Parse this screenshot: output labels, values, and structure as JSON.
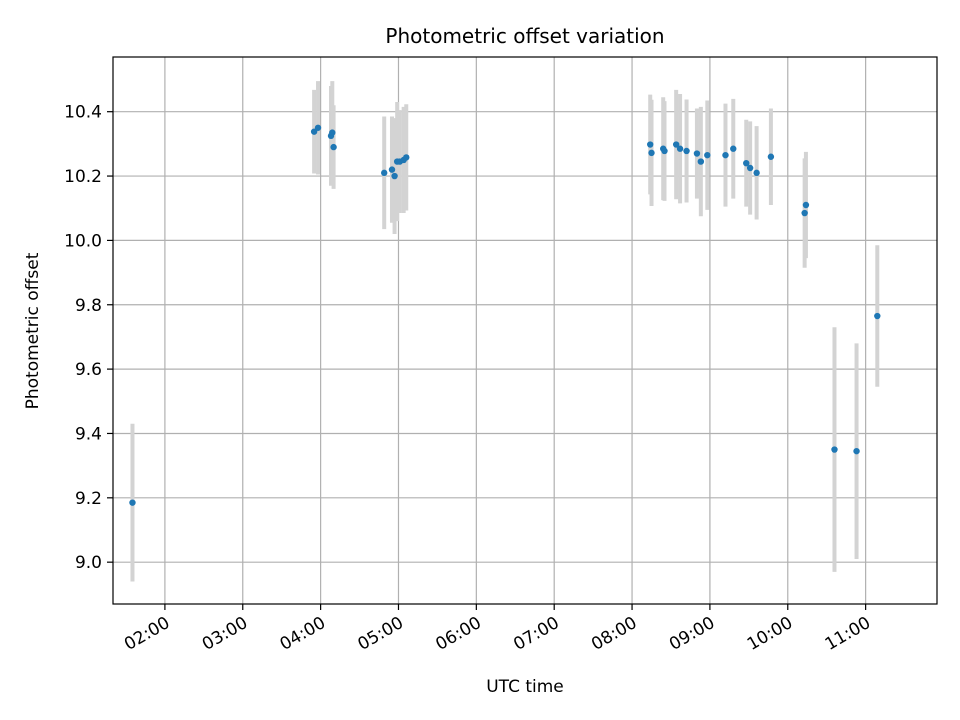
{
  "chart_data": {
    "type": "scatter",
    "title": "Photometric offset variation",
    "xlabel": "UTC time",
    "ylabel": "Photometric offset",
    "x_axis_type": "time",
    "xlim": [
      "01:20",
      "11:55"
    ],
    "ylim": [
      8.87,
      10.57
    ],
    "grid": true,
    "x_ticks": [
      "02:00",
      "03:00",
      "04:00",
      "05:00",
      "06:00",
      "07:00",
      "08:00",
      "09:00",
      "10:00",
      "11:00"
    ],
    "y_ticks": [
      9.0,
      9.2,
      9.4,
      9.6,
      9.8,
      10.0,
      10.2,
      10.4
    ],
    "y_tick_labels": [
      "9.0",
      "9.2",
      "9.4",
      "9.6",
      "9.8",
      "10.0",
      "10.2",
      "10.4"
    ],
    "marker_color": "#1f77b4",
    "errorbar_color": "#d3d3d3",
    "points": [
      {
        "time": "01:35",
        "y": 9.185,
        "yerr": 0.245
      },
      {
        "time": "03:55",
        "y": 10.338,
        "yerr": 0.13
      },
      {
        "time": "03:58",
        "y": 10.35,
        "yerr": 0.145
      },
      {
        "time": "04:08",
        "y": 10.325,
        "yerr": 0.155
      },
      {
        "time": "04:09",
        "y": 10.335,
        "yerr": 0.16
      },
      {
        "time": "04:10",
        "y": 10.29,
        "yerr": 0.13
      },
      {
        "time": "04:49",
        "y": 10.21,
        "yerr": 0.175
      },
      {
        "time": "04:55",
        "y": 10.22,
        "yerr": 0.165
      },
      {
        "time": "04:57",
        "y": 10.2,
        "yerr": 0.18
      },
      {
        "time": "04:59",
        "y": 10.245,
        "yerr": 0.185
      },
      {
        "time": "05:01",
        "y": 10.245,
        "yerr": 0.16
      },
      {
        "time": "05:04",
        "y": 10.25,
        "yerr": 0.165
      },
      {
        "time": "05:06",
        "y": 10.258,
        "yerr": 0.165
      },
      {
        "time": "08:14",
        "y": 10.298,
        "yerr": 0.155
      },
      {
        "time": "08:15",
        "y": 10.272,
        "yerr": 0.165
      },
      {
        "time": "08:24",
        "y": 10.285,
        "yerr": 0.16
      },
      {
        "time": "08:25",
        "y": 10.278,
        "yerr": 0.155
      },
      {
        "time": "08:34",
        "y": 10.298,
        "yerr": 0.17
      },
      {
        "time": "08:37",
        "y": 10.285,
        "yerr": 0.17
      },
      {
        "time": "08:42",
        "y": 10.278,
        "yerr": 0.16
      },
      {
        "time": "08:50",
        "y": 10.27,
        "yerr": 0.14
      },
      {
        "time": "08:53",
        "y": 10.245,
        "yerr": 0.17
      },
      {
        "time": "08:58",
        "y": 10.265,
        "yerr": 0.17
      },
      {
        "time": "09:12",
        "y": 10.265,
        "yerr": 0.16
      },
      {
        "time": "09:18",
        "y": 10.285,
        "yerr": 0.155
      },
      {
        "time": "09:28",
        "y": 10.24,
        "yerr": 0.135
      },
      {
        "time": "09:31",
        "y": 10.225,
        "yerr": 0.145
      },
      {
        "time": "09:36",
        "y": 10.21,
        "yerr": 0.145
      },
      {
        "time": "09:47",
        "y": 10.26,
        "yerr": 0.15
      },
      {
        "time": "10:13",
        "y": 10.085,
        "yerr": 0.17
      },
      {
        "time": "10:14",
        "y": 10.11,
        "yerr": 0.165
      },
      {
        "time": "10:36",
        "y": 9.35,
        "yerr": 0.38
      },
      {
        "time": "10:53",
        "y": 9.345,
        "yerr": 0.335
      },
      {
        "time": "11:09",
        "y": 9.765,
        "yerr": 0.22
      }
    ]
  }
}
